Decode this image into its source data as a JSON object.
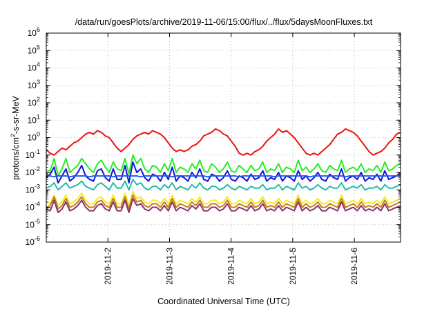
{
  "chart_data": {
    "type": "line",
    "title": "/data/run/goesPlots/archive/2019-11-06/15:00/flux/../flux/5daysMoonFluxes.txt",
    "xlabel": "Coordinated Universal Time (UTC)",
    "ylabel_parts": [
      "protons/cm",
      "2",
      "-s-sr-MeV"
    ],
    "y_scale": "log",
    "ylim_exp": [
      -6,
      6
    ],
    "y_tick_labels": [
      {
        "base": "10",
        "exp": "-6"
      },
      {
        "base": "10",
        "exp": "-5"
      },
      {
        "base": "10",
        "exp": "-4"
      },
      {
        "base": "10",
        "exp": "-3"
      },
      {
        "base": "10",
        "exp": "-2"
      },
      {
        "base": "10",
        "exp": "-1"
      },
      {
        "base": "10",
        "exp": "0"
      },
      {
        "base": "10",
        "exp": "1"
      },
      {
        "base": "10",
        "exp": "2"
      },
      {
        "base": "10",
        "exp": "3"
      },
      {
        "base": "10",
        "exp": "4"
      },
      {
        "base": "10",
        "exp": "5"
      },
      {
        "base": "10",
        "exp": "6"
      }
    ],
    "x_range_days": [
      0,
      5.75
    ],
    "x_ticks": [
      {
        "day": 1,
        "label": "2019-11-2"
      },
      {
        "day": 2,
        "label": "2019-11-3"
      },
      {
        "day": 3,
        "label": "2019-11-4"
      },
      {
        "day": 4,
        "label": "2019-11-5"
      },
      {
        "day": 5,
        "label": "2019-11-6"
      }
    ],
    "grid": true,
    "series": [
      {
        "color": "#ee1111",
        "values_log10": [
          -0.7,
          -0.9,
          -1.0,
          -0.8,
          -0.6,
          -0.7,
          -0.5,
          -0.3,
          -0.2,
          0.0,
          0.2,
          0.3,
          0.2,
          0.4,
          0.3,
          0.1,
          0.0,
          -0.3,
          -0.6,
          -0.8,
          -0.6,
          -0.4,
          -0.1,
          0.1,
          0.2,
          0.3,
          0.2,
          0.4,
          0.3,
          0.2,
          0.0,
          -0.3,
          -0.6,
          -0.8,
          -0.7,
          -0.8,
          -0.7,
          -0.5,
          -0.4,
          -0.2,
          0.1,
          0.2,
          0.3,
          0.5,
          0.4,
          0.2,
          0.1,
          -0.2,
          -0.5,
          -0.9,
          -1.0,
          -0.9,
          -1.0,
          -0.8,
          -0.7,
          -0.5,
          -0.2,
          0.0,
          0.2,
          0.5,
          0.3,
          0.4,
          0.2,
          0.0,
          -0.3,
          -0.6,
          -0.9,
          -1.0,
          -0.9,
          -1.0,
          -0.8,
          -0.6,
          -0.4,
          -0.1,
          0.2,
          0.3,
          0.5,
          0.4,
          0.3,
          0.1,
          -0.2,
          -0.5,
          -0.8,
          -1.0,
          -0.9,
          -0.8,
          -0.6,
          -0.3,
          -0.1,
          0.2,
          0.3
        ]
      },
      {
        "color": "#22ee22",
        "values_log10": [
          -1.9,
          -1.9,
          -1.2,
          -2.2,
          -1.8,
          -1.2,
          -2.0,
          -1.8,
          -1.6,
          -1.2,
          -1.5,
          -1.8,
          -2.0,
          -1.5,
          -1.3,
          -1.7,
          -2.0,
          -1.4,
          -1.8,
          -1.9,
          -1.2,
          -2.1,
          -1.0,
          -1.5,
          -1.2,
          -1.8,
          -2.0,
          -1.6,
          -1.7,
          -2.0,
          -1.5,
          -1.9,
          -1.2,
          -2.0,
          -1.7,
          -1.8,
          -2.0,
          -1.5,
          -1.8,
          -1.3,
          -1.9,
          -2.0,
          -1.5,
          -1.7,
          -2.0,
          -1.8,
          -1.4,
          -1.9,
          -2.0,
          -1.6,
          -1.8,
          -2.0,
          -1.6,
          -1.9,
          -1.8,
          -1.4,
          -2.0,
          -1.8,
          -1.9,
          -1.5,
          -2.0,
          -1.7,
          -1.8,
          -2.0,
          -1.3,
          -1.9,
          -1.7,
          -2.0,
          -1.8,
          -1.5,
          -1.9,
          -2.0,
          -1.6,
          -1.8,
          -1.9,
          -1.3,
          -2.0,
          -1.8,
          -1.7,
          -1.9,
          -1.5,
          -2.0,
          -1.8,
          -1.9,
          -1.6,
          -2.0,
          -1.4,
          -1.9,
          -1.8,
          -1.6,
          -1.5
        ]
      },
      {
        "color": "#1111dd",
        "values_log10": [
          -2.3,
          -2.1,
          -1.7,
          -2.6,
          -2.2,
          -1.8,
          -2.5,
          -2.3,
          -2.0,
          -1.6,
          -2.2,
          -2.4,
          -2.5,
          -1.9,
          -1.8,
          -2.3,
          -2.5,
          -1.8,
          -2.4,
          -2.4,
          -1.6,
          -2.6,
          -1.4,
          -2.0,
          -1.8,
          -2.3,
          -2.5,
          -2.1,
          -2.2,
          -2.5,
          -2.0,
          -2.4,
          -1.7,
          -2.5,
          -2.2,
          -2.3,
          -2.5,
          -2.0,
          -2.3,
          -1.8,
          -2.4,
          -2.5,
          -2.1,
          -2.2,
          -2.5,
          -2.3,
          -1.9,
          -2.4,
          -2.5,
          -2.2,
          -2.3,
          -2.5,
          -2.1,
          -2.4,
          -2.3,
          -1.9,
          -2.5,
          -2.3,
          -2.4,
          -2.0,
          -2.5,
          -2.2,
          -2.3,
          -2.5,
          -1.9,
          -2.4,
          -2.2,
          -2.5,
          -2.3,
          -2.0,
          -2.4,
          -2.5,
          -2.1,
          -2.3,
          -2.4,
          -1.8,
          -2.5,
          -2.3,
          -2.2,
          -2.4,
          -2.0,
          -2.5,
          -2.3,
          -2.4,
          -2.1,
          -2.5,
          -1.9,
          -2.4,
          -2.3,
          -2.2,
          -2.0
        ]
      },
      {
        "color": "#2255ee",
        "values_log10": [
          -2.2,
          -2.2,
          -2.25,
          -2.2,
          -2.2,
          -2.2,
          -2.25,
          -2.2,
          -2.2,
          -2.2,
          -2.2,
          -2.25,
          -2.2,
          -2.2,
          -2.2,
          -2.2,
          -2.2,
          -2.25,
          -2.2,
          -2.2,
          -2.2,
          -2.2,
          -2.2,
          -2.2,
          -2.25,
          -2.2,
          -2.2,
          -2.2,
          -2.2,
          -2.2,
          -2.2,
          -2.2,
          -2.25,
          -2.2,
          -2.2,
          -2.2,
          -2.2,
          -2.2,
          -2.2,
          -2.2,
          -2.2,
          -2.25,
          -2.2,
          -2.2,
          -2.2,
          -2.2,
          -2.2,
          -2.2,
          -2.2,
          -2.25,
          -2.2,
          -2.2,
          -2.2,
          -2.2,
          -2.2,
          -2.2,
          -2.2,
          -2.2,
          -2.25,
          -2.2,
          -2.2,
          -2.2,
          -2.2,
          -2.2,
          -2.2,
          -2.2,
          -2.2,
          -2.25,
          -2.2,
          -2.2,
          -2.2,
          -2.2,
          -2.2,
          -2.2,
          -2.2,
          -2.2,
          -2.25,
          -2.2,
          -2.2,
          -2.2,
          -2.2,
          -2.2,
          -2.2,
          -2.2,
          -2.2,
          -2.2,
          -2.2,
          -2.2,
          -2.2,
          -2.2,
          -2.2
        ]
      },
      {
        "color": "#22bbaa",
        "values_log10": [
          -2.9,
          -2.8,
          -2.6,
          -3.0,
          -2.8,
          -2.6,
          -2.9,
          -2.8,
          -2.7,
          -2.5,
          -2.8,
          -2.9,
          -3.0,
          -2.7,
          -2.6,
          -2.8,
          -3.0,
          -2.6,
          -2.9,
          -2.9,
          -2.5,
          -3.0,
          -2.4,
          -2.7,
          -2.6,
          -2.9,
          -3.0,
          -2.8,
          -2.8,
          -3.0,
          -2.7,
          -2.9,
          -2.6,
          -3.0,
          -2.8,
          -2.9,
          -3.0,
          -2.7,
          -2.9,
          -2.6,
          -2.9,
          -3.0,
          -2.8,
          -2.8,
          -3.0,
          -2.9,
          -2.7,
          -2.9,
          -3.0,
          -2.8,
          -2.9,
          -3.0,
          -2.8,
          -2.9,
          -2.9,
          -2.7,
          -3.0,
          -2.9,
          -2.9,
          -2.7,
          -3.0,
          -2.8,
          -2.9,
          -3.0,
          -2.6,
          -2.9,
          -2.8,
          -3.0,
          -2.9,
          -2.7,
          -2.9,
          -3.0,
          -2.8,
          -2.9,
          -2.9,
          -2.6,
          -3.0,
          -2.9,
          -2.8,
          -2.9,
          -2.7,
          -3.0,
          -2.9,
          -2.9,
          -2.8,
          -3.0,
          -2.7,
          -2.9,
          -2.9,
          -2.8,
          -2.7
        ]
      },
      {
        "color": "#eeee22",
        "values_log10": [
          -3.7,
          -3.8,
          -3.3,
          -3.9,
          -3.7,
          -3.3,
          -3.8,
          -3.7,
          -3.5,
          -3.2,
          -3.6,
          -3.8,
          -3.8,
          -3.5,
          -3.4,
          -3.7,
          -3.8,
          -3.3,
          -3.8,
          -3.8,
          -3.2,
          -3.9,
          -3.1,
          -3.5,
          -3.4,
          -3.7,
          -3.8,
          -3.6,
          -3.6,
          -3.8,
          -3.5,
          -3.8,
          -3.3,
          -3.8,
          -3.6,
          -3.7,
          -3.8,
          -3.5,
          -3.7,
          -3.4,
          -3.8,
          -3.8,
          -3.6,
          -3.6,
          -3.8,
          -3.7,
          -3.4,
          -3.8,
          -3.8,
          -3.6,
          -3.7,
          -3.8,
          -3.5,
          -3.8,
          -3.7,
          -3.4,
          -3.8,
          -3.7,
          -3.8,
          -3.5,
          -3.8,
          -3.6,
          -3.7,
          -3.8,
          -3.3,
          -3.8,
          -3.6,
          -3.8,
          -3.7,
          -3.5,
          -3.8,
          -3.8,
          -3.6,
          -3.7,
          -3.8,
          -3.3,
          -3.8,
          -3.7,
          -3.6,
          -3.8,
          -3.5,
          -3.8,
          -3.7,
          -3.8,
          -3.6,
          -3.8,
          -3.4,
          -3.8,
          -3.7,
          -3.6,
          -3.5
        ]
      },
      {
        "color": "#cc7722",
        "values_log10": [
          -4.0,
          -3.9,
          -3.4,
          -4.1,
          -3.9,
          -3.5,
          -4.0,
          -3.9,
          -3.7,
          -3.4,
          -3.8,
          -4.0,
          -4.0,
          -3.7,
          -3.6,
          -3.9,
          -4.0,
          -3.5,
          -4.0,
          -4.0,
          -3.4,
          -4.1,
          -3.3,
          -3.7,
          -3.6,
          -3.9,
          -4.0,
          -3.8,
          -3.8,
          -4.0,
          -3.7,
          -4.0,
          -3.5,
          -4.0,
          -3.8,
          -3.9,
          -4.0,
          -3.7,
          -3.9,
          -3.6,
          -4.0,
          -4.0,
          -3.8,
          -3.8,
          -4.0,
          -3.9,
          -3.6,
          -4.0,
          -4.0,
          -3.8,
          -3.9,
          -4.0,
          -3.7,
          -4.0,
          -3.9,
          -3.6,
          -4.0,
          -3.9,
          -4.0,
          -3.7,
          -4.0,
          -3.8,
          -3.9,
          -4.0,
          -3.5,
          -4.0,
          -3.8,
          -4.0,
          -3.9,
          -3.7,
          -4.0,
          -4.0,
          -3.8,
          -3.9,
          -4.0,
          -3.5,
          -4.0,
          -3.9,
          -3.8,
          -4.0,
          -3.7,
          -4.0,
          -3.9,
          -4.0,
          -3.8,
          -4.0,
          -3.6,
          -4.0,
          -3.9,
          -3.8,
          -3.7
        ]
      },
      {
        "color": "#883366",
        "values_log10": [
          -4.1,
          -4.2,
          -3.6,
          -4.3,
          -4.1,
          -3.7,
          -4.2,
          -4.1,
          -3.9,
          -3.6,
          -4.0,
          -4.2,
          -4.2,
          -3.9,
          -3.8,
          -4.1,
          -4.2,
          -3.7,
          -4.2,
          -4.2,
          -3.6,
          -4.3,
          -3.5,
          -3.9,
          -3.8,
          -4.1,
          -4.2,
          -4.0,
          -4.0,
          -4.2,
          -3.9,
          -4.2,
          -3.7,
          -4.2,
          -4.0,
          -4.1,
          -4.2,
          -3.9,
          -4.1,
          -3.8,
          -4.2,
          -4.2,
          -4.0,
          -4.0,
          -4.2,
          -4.1,
          -3.8,
          -4.2,
          -4.2,
          -4.0,
          -4.1,
          -4.2,
          -3.9,
          -4.2,
          -4.1,
          -3.8,
          -4.2,
          -4.1,
          -4.2,
          -3.9,
          -4.2,
          -4.0,
          -4.1,
          -4.2,
          -3.7,
          -4.2,
          -4.0,
          -4.2,
          -4.1,
          -3.9,
          -4.2,
          -4.2,
          -4.0,
          -4.1,
          -4.2,
          -3.7,
          -4.2,
          -4.1,
          -4.0,
          -4.2,
          -3.9,
          -4.2,
          -4.1,
          -4.2,
          -4.0,
          -4.2,
          -3.8,
          -4.2,
          -4.1,
          -4.0,
          -3.9
        ]
      }
    ]
  }
}
